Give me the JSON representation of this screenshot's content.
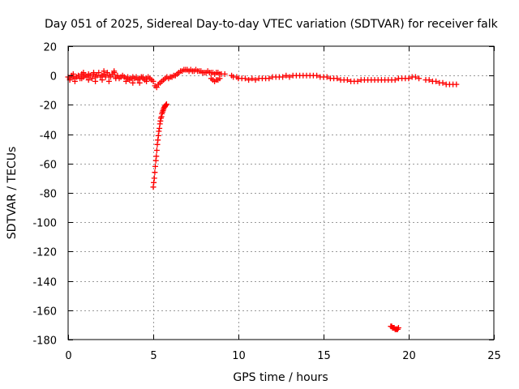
{
  "chart_data": {
    "type": "scatter",
    "title": "Day 051 of 2025, Sidereal Day-to-day VTEC variation (SDTVAR) for receiver falk",
    "xlabel": "GPS time / hours",
    "ylabel": "SDTVAR / TECUs",
    "xlim": [
      0,
      25
    ],
    "ylim": [
      -180,
      20
    ],
    "grid": true,
    "marker": "+",
    "color": "#ff0000",
    "x_ticks": [
      0,
      5,
      10,
      15,
      20,
      25
    ],
    "x_tick_labels": [
      "0",
      "5",
      "10",
      "15",
      "20",
      "25"
    ],
    "y_ticks": [
      20,
      0,
      -20,
      -40,
      -60,
      -80,
      -100,
      -120,
      -140,
      -160,
      -180
    ],
    "y_tick_labels": [
      "20",
      "0",
      "-20",
      "-40",
      "-60",
      "-80",
      "-100",
      "-120",
      "-140",
      "-160",
      "-180"
    ],
    "series": [
      {
        "name": "SDTVAR",
        "x": [
          0.0,
          0.1,
          0.2,
          0.3,
          0.4,
          0.5,
          0.6,
          0.7,
          0.8,
          0.9,
          1.0,
          1.1,
          1.2,
          1.3,
          1.4,
          1.5,
          1.6,
          1.7,
          1.8,
          1.9,
          2.0,
          2.1,
          2.2,
          2.3,
          2.4,
          2.5,
          2.6,
          2.7,
          2.8,
          2.9,
          3.0,
          3.1,
          3.2,
          3.3,
          3.4,
          3.5,
          3.6,
          3.7,
          3.8,
          3.9,
          4.0,
          4.1,
          4.2,
          4.3,
          4.4,
          4.5,
          4.6,
          4.7,
          4.8,
          4.9,
          5.0,
          0.1,
          0.4,
          0.8,
          1.2,
          1.6,
          2.0,
          2.4,
          2.8,
          3.4,
          3.8,
          4.2,
          4.6,
          0.3,
          0.9,
          1.5,
          2.1,
          2.7,
          3.5,
          4.4,
          5.0,
          5.03,
          5.06,
          5.09,
          5.12,
          5.15,
          5.18,
          5.21,
          5.24,
          5.27,
          5.3,
          5.33,
          5.36,
          5.39,
          5.42,
          5.45,
          5.48,
          5.51,
          5.54,
          5.57,
          5.6,
          5.63,
          5.66,
          5.69,
          5.72,
          5.75,
          5.78,
          5.1,
          5.2,
          5.3,
          5.4,
          5.5,
          5.6,
          5.7,
          5.8,
          5.9,
          6.0,
          6.1,
          6.2,
          6.3,
          6.4,
          6.5,
          6.6,
          6.7,
          6.8,
          6.9,
          7.0,
          7.1,
          7.2,
          7.3,
          7.4,
          7.5,
          7.6,
          7.7,
          7.8,
          7.9,
          8.0,
          8.1,
          8.2,
          8.3,
          8.4,
          8.5,
          8.6,
          8.7,
          8.8,
          8.9,
          9.0,
          9.2,
          8.4,
          8.5,
          8.6,
          8.7,
          8.8,
          8.9,
          9.6,
          9.7,
          9.9,
          10.0,
          10.2,
          10.4,
          10.6,
          10.8,
          11.0,
          11.2,
          11.4,
          11.6,
          11.8,
          12.0,
          12.2,
          12.4,
          12.6,
          12.8,
          13.0,
          13.2,
          13.4,
          13.6,
          13.8,
          14.0,
          14.2,
          14.4,
          14.6,
          14.8,
          15.0,
          15.2,
          15.4,
          15.6,
          15.8,
          16.0,
          16.2,
          16.4,
          16.6,
          16.8,
          17.0,
          17.2,
          17.4,
          17.6,
          17.8,
          18.0,
          18.2,
          18.4,
          18.6,
          18.8,
          19.0,
          19.2,
          19.4,
          19.6,
          19.8,
          20.0,
          20.2,
          20.4,
          20.6,
          21.0,
          21.2,
          21.4,
          21.6,
          21.8,
          22.0,
          22.2,
          22.4,
          22.6,
          22.8,
          18.95,
          19.0,
          19.05,
          19.1,
          19.15,
          19.2,
          19.25,
          19.3,
          19.35,
          19.4
        ],
        "y": [
          -1,
          -2,
          0,
          -1,
          -2,
          -1,
          0,
          -2,
          1,
          -1,
          0,
          -1,
          1,
          0,
          -2,
          1,
          -1,
          0,
          2,
          -1,
          0,
          1,
          -1,
          2,
          0,
          -1,
          1,
          3,
          -1,
          0,
          -2,
          -1,
          0,
          -1,
          -2,
          -1,
          -3,
          -2,
          -1,
          -2,
          -1,
          -3,
          -2,
          -1,
          -2,
          -3,
          -2,
          -1,
          -2,
          -3,
          -4,
          -3,
          -4,
          -2,
          -3,
          -4,
          -3,
          -4,
          -2,
          -4,
          -5,
          -5,
          -4,
          1,
          2,
          2,
          3,
          2,
          -2,
          -1,
          -76,
          -73,
          -70,
          -66,
          -62,
          -58,
          -55,
          -51,
          -47,
          -44,
          -41,
          -38,
          -36,
          -33,
          -31,
          -29,
          -28,
          -26,
          -25,
          -24,
          -23,
          -22,
          -21.5,
          -21,
          -20.5,
          -20,
          -19.5,
          -7,
          -8,
          -6,
          -5,
          -4,
          -3,
          -2,
          -1,
          -2,
          -1,
          -1,
          0,
          0,
          1,
          2,
          3,
          3,
          4,
          4,
          4,
          3,
          4,
          3,
          3,
          4,
          3,
          3,
          3,
          2,
          2,
          2,
          3,
          2,
          2,
          2,
          1,
          2,
          2,
          1,
          1,
          1,
          -2,
          -3,
          -4,
          -3,
          -3,
          -2,
          0,
          -1,
          -1,
          -2,
          -2,
          -2,
          -3,
          -2,
          -3,
          -2,
          -2,
          -2,
          -2,
          -1,
          -1,
          -1,
          -1,
          0,
          -1,
          0,
          0,
          0,
          0,
          0,
          0,
          0,
          0,
          -1,
          -1,
          -1,
          -2,
          -2,
          -2,
          -3,
          -3,
          -3,
          -4,
          -4,
          -4,
          -3,
          -3,
          -3,
          -3,
          -3,
          -3,
          -3,
          -3,
          -3,
          -3,
          -3,
          -2,
          -2,
          -2,
          -2,
          -1,
          -1,
          -2,
          -3,
          -3,
          -4,
          -4,
          -5,
          -5,
          -6,
          -6,
          -6,
          -6,
          -171,
          -171,
          -172,
          -172,
          -172,
          -173,
          -173,
          -173,
          -173,
          -172
        ]
      }
    ]
  }
}
